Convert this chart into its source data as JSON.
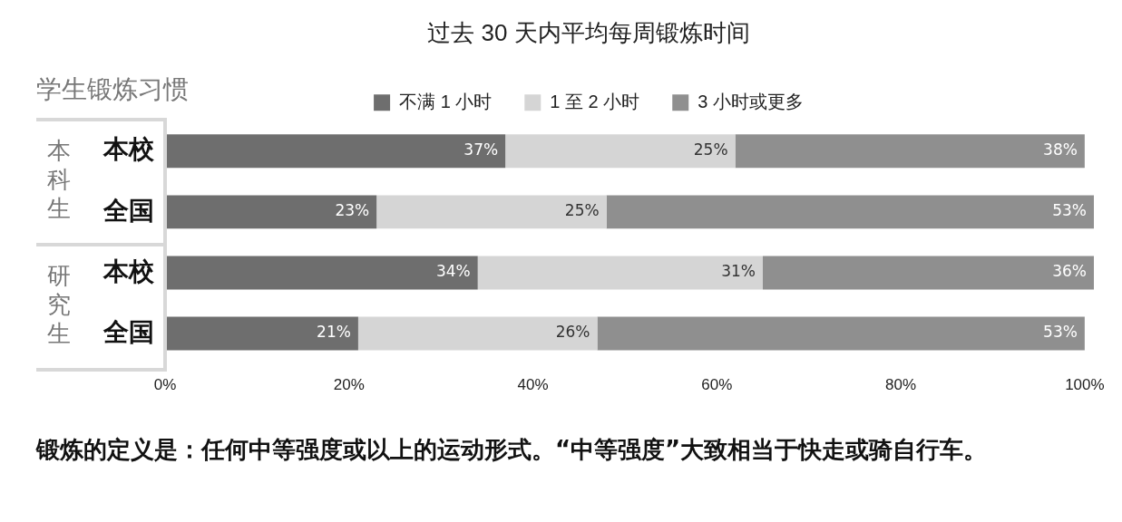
{
  "chart_data": {
    "type": "bar",
    "orientation": "horizontal",
    "stacked": true,
    "title": "过去 30 天内平均每周锻炼时间",
    "ylabel": "学生锻炼习惯",
    "categories": [
      "本校",
      "全国",
      "本校",
      "全国"
    ],
    "series": [
      {
        "name": "不满 1 小时",
        "color": "#6e6e6e",
        "values": [
          37,
          23,
          34,
          21
        ],
        "value_labels": [
          "37%",
          "23%",
          "34%",
          "21%"
        ]
      },
      {
        "name": "1 至 2 小时",
        "color": "#d5d5d5",
        "values": [
          25,
          25,
          31,
          26
        ],
        "value_labels": [
          "25%",
          "25%",
          "31%",
          "26%"
        ]
      },
      {
        "name": "3 小时或更多",
        "color": "#8f8f8f",
        "values": [
          38,
          53,
          36,
          53
        ],
        "value_labels": [
          "38%",
          "53%",
          "36%",
          "53%"
        ]
      }
    ],
    "xlim": [
      0,
      101
    ],
    "xticks": [
      {
        "value": 0,
        "label": "0%"
      },
      {
        "value": 20,
        "label": "20%"
      },
      {
        "value": 40,
        "label": "40%"
      },
      {
        "value": 60,
        "label": "60%"
      },
      {
        "value": 80,
        "label": "80%"
      },
      {
        "value": 100,
        "label": "100%"
      }
    ],
    "grid": false,
    "legend": "top",
    "annotations": [
      "本科生",
      "研究生",
      "锻炼的定义是：任何中等强度或以上的运动形式。“中等强度”大致相当于快走或骑自行车。"
    ]
  }
}
